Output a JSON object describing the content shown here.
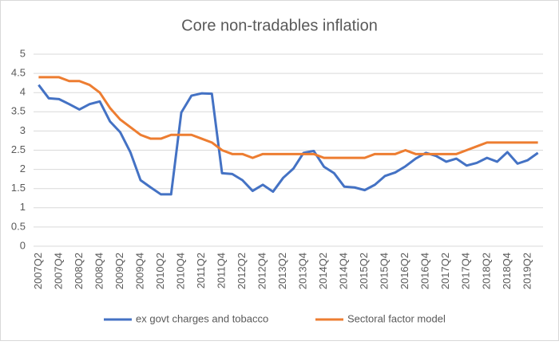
{
  "chart_data": {
    "type": "line",
    "title": "Core non-tradables inflation",
    "categories": [
      "2007Q2",
      null,
      "2007Q4",
      null,
      "2008Q2",
      null,
      "2008Q4",
      null,
      "2009Q2",
      null,
      "2009Q4",
      null,
      "2010Q2",
      null,
      "2010Q4",
      null,
      "2011Q2",
      null,
      "2011Q4",
      null,
      "2012Q2",
      null,
      "2012Q4",
      null,
      "2013Q2",
      null,
      "2013Q4",
      null,
      "2014Q2",
      null,
      "2014Q4",
      null,
      "2015Q2",
      null,
      "2015Q4",
      null,
      "2016Q2",
      null,
      "2016Q4",
      null,
      "2017Q2",
      null,
      "2017Q4",
      null,
      "2018Q2",
      null,
      "2018Q4",
      null,
      "2019Q2",
      null
    ],
    "series": [
      {
        "name": "ex govt charges and tobacco",
        "color": "#4472c4",
        "values": [
          4.2,
          3.85,
          3.83,
          3.7,
          3.56,
          3.7,
          3.77,
          3.25,
          2.97,
          2.45,
          1.72,
          1.53,
          1.35,
          1.35,
          3.48,
          3.92,
          3.98,
          3.97,
          1.9,
          1.88,
          1.72,
          1.44,
          1.6,
          1.42,
          1.78,
          2.02,
          2.43,
          2.48,
          2.07,
          1.9,
          1.55,
          1.53,
          1.46,
          1.6,
          1.83,
          1.92,
          2.08,
          2.28,
          2.43,
          2.35,
          2.2,
          2.28,
          2.1,
          2.17,
          2.3,
          2.2,
          2.45,
          2.15,
          2.24,
          2.43
        ]
      },
      {
        "name": "Sectoral factor model",
        "color": "#ed7d31",
        "values": [
          4.4,
          4.4,
          4.4,
          4.3,
          4.3,
          4.2,
          4.0,
          3.6,
          3.3,
          3.1,
          2.9,
          2.8,
          2.8,
          2.9,
          2.9,
          2.9,
          2.8,
          2.7,
          2.5,
          2.4,
          2.4,
          2.3,
          2.4,
          2.4,
          2.4,
          2.4,
          2.4,
          2.4,
          2.3,
          2.3,
          2.3,
          2.3,
          2.3,
          2.4,
          2.4,
          2.4,
          2.5,
          2.4,
          2.4,
          2.4,
          2.4,
          2.4,
          2.5,
          2.6,
          2.7,
          2.7,
          2.7,
          2.7,
          2.7,
          2.7
        ]
      }
    ],
    "ylim": [
      0,
      5
    ],
    "yticks": [
      0,
      0.5,
      1,
      1.5,
      2,
      2.5,
      3,
      3.5,
      4,
      4.5,
      5
    ],
    "grid": true,
    "legend": "bottom"
  }
}
